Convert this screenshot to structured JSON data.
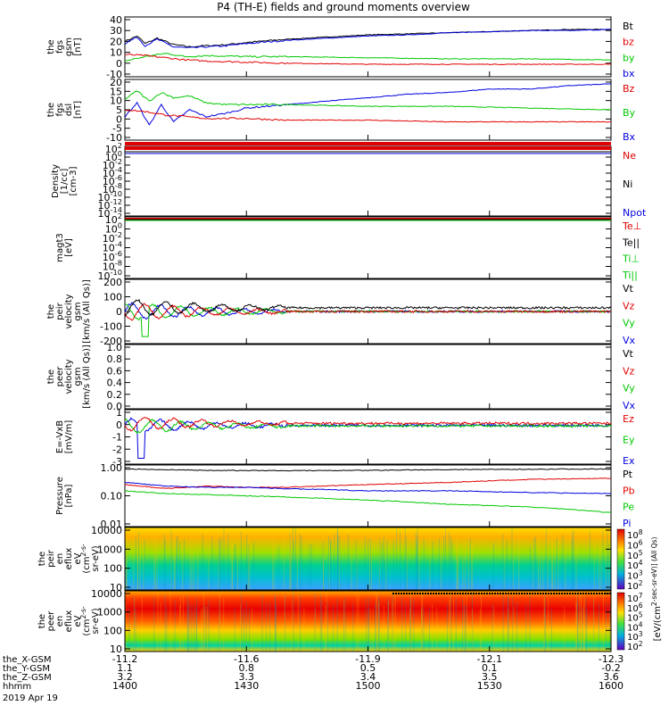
{
  "title": "P4 (TH-E) fields and ground moments overview",
  "colors": {
    "black": "#000000",
    "red": "#e00000",
    "green": "#00c800",
    "blue": "#0000e0"
  },
  "chart_data": {
    "type": "line",
    "x_axis": {
      "label": "hhmm",
      "ticks": [
        "1400",
        "1430",
        "1500",
        "1530",
        "1600"
      ],
      "range_minutes": [
        0,
        120
      ],
      "ephemeris_rows": [
        {
          "label": "the_X-GSM",
          "values": [
            "-11.2",
            "-11.6",
            "-11.9",
            "-12.1",
            "-12.3"
          ]
        },
        {
          "label": "the_Y-GSM",
          "values": [
            "1.1",
            "0.8",
            "0.5",
            "0.1",
            "-0.2"
          ]
        },
        {
          "label": "the_Z-GSM",
          "values": [
            "3.2",
            "3.3",
            "3.4",
            "3.5",
            "3.6"
          ]
        }
      ],
      "date": "2019 Apr 19"
    },
    "panels": [
      {
        "id": "fgs_gsm",
        "ylabel": [
          "the",
          "fgs",
          "gsm",
          "[nT]"
        ],
        "yticks": [
          "40",
          "30",
          "20",
          "10",
          "0",
          "-10"
        ],
        "ylim": [
          -10,
          40
        ],
        "legend": [
          {
            "name": "Bt",
            "color": "black"
          },
          {
            "name": "bz",
            "color": "red"
          },
          {
            "name": "by",
            "color": "green"
          },
          {
            "name": "bx",
            "color": "blue"
          }
        ],
        "series": [
          {
            "name": "Bt",
            "color": "black",
            "x": [
              0,
              3,
              5,
              8,
              12,
              16,
              20,
              25,
              30,
              40,
              50,
              60,
              70,
              80,
              90,
              100,
              110,
              120
            ],
            "y": [
              20,
              25,
              18,
              23,
              17,
              15,
              16,
              17,
              19,
              22,
              24,
              26,
              27,
              28,
              29,
              30,
              31,
              31
            ]
          },
          {
            "name": "bx",
            "color": "blue",
            "x": [
              0,
              3,
              5,
              8,
              12,
              16,
              20,
              25,
              30,
              40,
              50,
              60,
              70,
              80,
              90,
              100,
              110,
              120
            ],
            "y": [
              18,
              24,
              16,
              22,
              15,
              14,
              15,
              16,
              18,
              21,
              23,
              25,
              26,
              28,
              29,
              30,
              30,
              31
            ]
          },
          {
            "name": "by",
            "color": "green",
            "x": [
              0,
              5,
              10,
              15,
              20,
              30,
              40,
              60,
              80,
              100,
              120
            ],
            "y": [
              2,
              6,
              9,
              6,
              7,
              6,
              6,
              5,
              4,
              4,
              3
            ]
          },
          {
            "name": "bz",
            "color": "red",
            "x": [
              0,
              5,
              10,
              15,
              20,
              30,
              40,
              60,
              80,
              100,
              120
            ],
            "y": [
              8,
              7,
              5,
              3,
              2,
              1,
              0,
              -1,
              -1,
              -1,
              -1
            ]
          }
        ]
      },
      {
        "id": "fgs_dsl",
        "ylabel": [
          "the",
          "fgs",
          "dsl",
          "[nT]"
        ],
        "yticks": [
          "20",
          "15",
          "10",
          "5",
          "0",
          "-5",
          "-10"
        ],
        "ylim": [
          -12,
          20
        ],
        "legend": [
          {
            "name": "Bz",
            "color": "red"
          },
          {
            "name": "By",
            "color": "green"
          },
          {
            "name": "Bx",
            "color": "blue"
          }
        ],
        "series": [
          {
            "name": "Bx",
            "color": "blue",
            "x": [
              0,
              3,
              6,
              9,
              12,
              16,
              20,
              25,
              30,
              40,
              50,
              60,
              70,
              80,
              90,
              100,
              110,
              120
            ],
            "y": [
              0,
              8,
              -5,
              7,
              -3,
              4,
              0,
              2,
              5,
              7,
              9,
              11,
              13,
              14,
              16,
              16,
              18,
              19
            ]
          },
          {
            "name": "By",
            "color": "green",
            "x": [
              0,
              3,
              6,
              9,
              12,
              16,
              20,
              25,
              30,
              40,
              60,
              80,
              100,
              120
            ],
            "y": [
              10,
              15,
              9,
              14,
              11,
              12,
              8,
              7,
              7,
              7,
              6,
              6,
              5,
              4
            ]
          },
          {
            "name": "Bz",
            "color": "red",
            "x": [
              0,
              5,
              10,
              15,
              20,
              30,
              40,
              60,
              80,
              100,
              120
            ],
            "y": [
              4,
              3,
              1,
              0,
              -1,
              -1,
              -2,
              -2,
              -3,
              -3,
              -3
            ]
          }
        ]
      },
      {
        "id": "density",
        "ylabel": [
          "Density",
          "[1/cc]",
          "[cm-3]"
        ],
        "yticks": [
          "10^2",
          "10^0",
          "10^-2",
          "10^-4",
          "10^-6",
          "10^-8",
          "10^-10",
          "10^-12",
          "10^-14"
        ],
        "ylim": [
          -14,
          2
        ],
        "log": true,
        "legend": [
          {
            "name": "Ne",
            "color": "red"
          },
          {
            "name": "Ni",
            "color": "black"
          },
          {
            "name": "Npot",
            "color": "blue"
          }
        ]
      },
      {
        "id": "temperature",
        "ylabel": [
          "magt3",
          "[eV]"
        ],
        "yticks": [
          "10^2",
          "10^0",
          "10^-2",
          "10^-4",
          "10^-6",
          "10^-8",
          "10^-10"
        ],
        "ylim": [
          -10,
          2
        ],
        "log": true,
        "legend": [
          {
            "name": "Te⊥",
            "color": "red"
          },
          {
            "name": "Te||",
            "color": "black"
          },
          {
            "name": "Ti⊥",
            "color": "green"
          },
          {
            "name": "Ti||",
            "color": "green"
          }
        ]
      },
      {
        "id": "peir_velocity",
        "ylabel": [
          "the",
          "peir",
          "velocity",
          "gsm",
          "[km/s (All Qs)]"
        ],
        "yticks": [
          "200",
          "100",
          "0",
          "-100",
          "-200"
        ],
        "ylim": [
          -200,
          200
        ],
        "legend": [
          {
            "name": "Vt",
            "color": "black"
          },
          {
            "name": "Vz",
            "color": "red"
          },
          {
            "name": "Vy",
            "color": "green"
          },
          {
            "name": "Vx",
            "color": "blue"
          }
        ]
      },
      {
        "id": "peer_velocity",
        "ylabel": [
          "the",
          "peer",
          "velocity",
          "gsm",
          "[km/s (All Qs)]"
        ],
        "yticks": [
          "1.0",
          "0.8",
          "0.6",
          "0.4",
          "0.2",
          "0.0"
        ],
        "ylim": [
          0,
          1
        ],
        "legend": [
          {
            "name": "Vt",
            "color": "black"
          },
          {
            "name": "Vz",
            "color": "red"
          },
          {
            "name": "Vy",
            "color": "green"
          },
          {
            "name": "Vx",
            "color": "blue"
          }
        ]
      },
      {
        "id": "efield",
        "ylabel": [
          "E=-VxB",
          "[mV/m]"
        ],
        "yticks": [
          "1",
          "0",
          "-1",
          "-2",
          "-3"
        ],
        "ylim": [
          -3.5,
          1.2
        ],
        "legend": [
          {
            "name": "Ez",
            "color": "red"
          },
          {
            "name": "Ey",
            "color": "green"
          },
          {
            "name": "Ex",
            "color": "blue"
          }
        ]
      },
      {
        "id": "pressure",
        "ylabel": [
          "Pressure",
          "[nPa]"
        ],
        "yticks": [
          "1.00",
          "0.10",
          "0.01"
        ],
        "ylim": [
          -2,
          0
        ],
        "log": true,
        "legend": [
          {
            "name": "Pt",
            "color": "black"
          },
          {
            "name": "Pb",
            "color": "red"
          },
          {
            "name": "Pe",
            "color": "green"
          },
          {
            "name": "Pi",
            "color": "blue"
          }
        ],
        "series": [
          {
            "name": "Pt",
            "color": "black",
            "x": [
              0,
              10,
              20,
              40,
              60,
              80,
              100,
              120
            ],
            "y": [
              0.9,
              0.85,
              0.8,
              0.78,
              0.8,
              0.85,
              0.88,
              0.9
            ]
          },
          {
            "name": "Pb",
            "color": "red",
            "x": [
              0,
              10,
              20,
              30,
              40,
              60,
              80,
              100,
              120
            ],
            "y": [
              0.25,
              0.18,
              0.22,
              0.2,
              0.2,
              0.25,
              0.3,
              0.38,
              0.42
            ]
          },
          {
            "name": "Pe",
            "color": "green",
            "x": [
              0,
              10,
              20,
              30,
              40,
              60,
              80,
              100,
              120
            ],
            "y": [
              0.15,
              0.12,
              0.11,
              0.1,
              0.09,
              0.07,
              0.05,
              0.04,
              0.025
            ]
          },
          {
            "name": "Pi",
            "color": "blue",
            "x": [
              0,
              10,
              20,
              30,
              40,
              60,
              80,
              100,
              120
            ],
            "y": [
              0.3,
              0.22,
              0.2,
              0.2,
              0.18,
              0.15,
              0.15,
              0.13,
              0.12
            ]
          }
        ]
      },
      {
        "id": "peir_eflux",
        "ylabel": [
          "the",
          "peir",
          "en",
          "eflux",
          "eV",
          "(cm^2-s-",
          "sr-eV)"
        ],
        "yticks": [
          "10000",
          "1000",
          "100",
          "10"
        ],
        "ylim": [
          5,
          15000
        ],
        "log": true
      },
      {
        "id": "peer_eflux",
        "ylabel": [
          "the",
          "peer",
          "en",
          "eflux",
          "eV",
          "(cm^2-s-",
          "sr-eV)"
        ],
        "yticks": [
          "10000",
          "1000",
          "100",
          "10"
        ],
        "ylim": [
          5,
          15000
        ],
        "log": true
      }
    ],
    "colorbars": [
      {
        "label": "[eV/(cm^2-sec-sr-eV)] (All Qs)",
        "ticks": [
          "10^8",
          "10^6",
          "10^5",
          "10^4",
          "10^3",
          "10^2"
        ]
      },
      {
        "label": "[eV/(cm^2-sec-sr-eV)] (All Qs)",
        "ticks": [
          "10^7",
          "10^6",
          "10^5",
          "10^4",
          "10^3",
          "10^2"
        ]
      }
    ]
  }
}
